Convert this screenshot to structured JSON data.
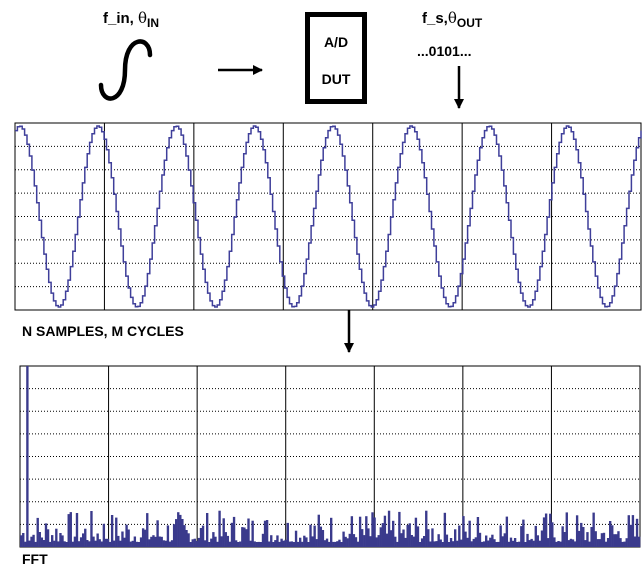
{
  "input": {
    "freq_label": "f_in, ",
    "theta_symbol": "θ",
    "theta_sub": "IN"
  },
  "dut_box": {
    "line1": "A/D",
    "line2": "DUT"
  },
  "output": {
    "freq_label": "f_s,",
    "theta_symbol": "θ",
    "theta_sub": "OUT",
    "bits": "...0101..."
  },
  "time_plot": {
    "caption": "N SAMPLES, M CYCLES",
    "cycles": 8,
    "line_color": "#3f3f9a",
    "grid": true
  },
  "fft_plot": {
    "caption": "FFT",
    "bar_color": "#3a3a8c",
    "spike_bin": 3,
    "grid": true
  }
}
